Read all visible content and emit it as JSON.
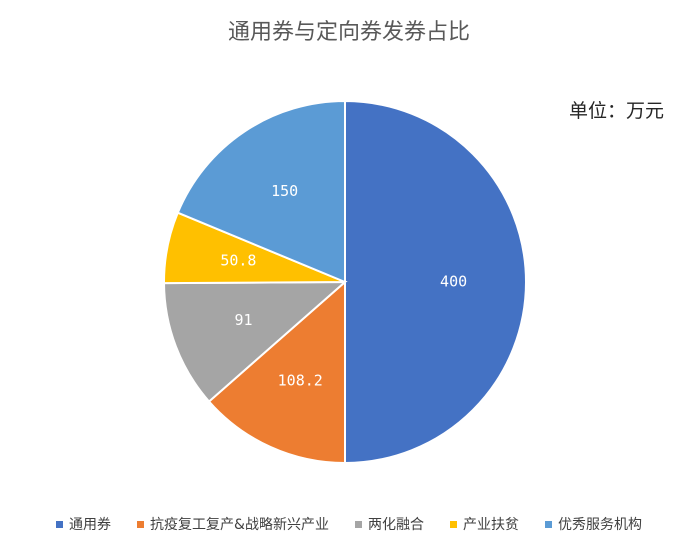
{
  "chart_data": {
    "type": "pie",
    "title": "通用券与定向券发券占比",
    "unit_label": "单位：万元",
    "categories": [
      "通用券",
      "抗疫复工复产&战略新兴产业",
      "两化融合",
      "产业扶贫",
      "优秀服务机构"
    ],
    "values": [
      400,
      108.2,
      91,
      50.8,
      150
    ],
    "data_labels": [
      "400",
      "108.2",
      "91",
      "50.8",
      "150"
    ],
    "colors": [
      "#4472C4",
      "#ED7D31",
      "#A5A5A5",
      "#FFC000",
      "#5B9BD5"
    ],
    "legend_position": "bottom",
    "start_angle_deg": 0,
    "direction": "clockwise"
  }
}
